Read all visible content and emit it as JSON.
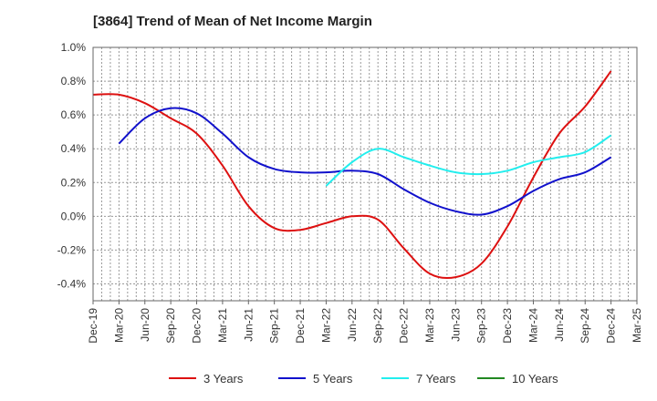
{
  "chart_data": {
    "type": "line",
    "title": "[3864]  Trend of Mean of Net Income Margin",
    "xlabel": "",
    "ylabel": "",
    "x": [
      "Dec-19",
      "Mar-20",
      "Jun-20",
      "Sep-20",
      "Dec-20",
      "Mar-21",
      "Jun-21",
      "Sep-21",
      "Dec-21",
      "Mar-22",
      "Jun-22",
      "Sep-22",
      "Dec-22",
      "Mar-23",
      "Jun-23",
      "Sep-23",
      "Dec-23",
      "Mar-24",
      "Jun-24",
      "Sep-24",
      "Dec-24",
      "Mar-25"
    ],
    "ylim": [
      -0.5,
      1.0
    ],
    "yticks": [
      1.0,
      0.8,
      0.6,
      0.4,
      0.2,
      0.0,
      -0.2,
      -0.4
    ],
    "ytick_labels": [
      "1.0%",
      "0.8%",
      "0.6%",
      "0.4%",
      "0.2%",
      "0.0%",
      "-0.2%",
      "-0.4%"
    ],
    "grid": true,
    "legend_position": "bottom",
    "series": [
      {
        "name": "3 Years",
        "color": "#dd1111",
        "values": [
          0.72,
          0.72,
          0.67,
          0.58,
          0.49,
          0.3,
          0.06,
          -0.07,
          -0.08,
          -0.04,
          0.0,
          -0.02,
          -0.19,
          -0.34,
          -0.36,
          -0.28,
          -0.06,
          0.23,
          0.49,
          0.65,
          0.86,
          null
        ]
      },
      {
        "name": "5 Years",
        "color": "#1111cc",
        "values": [
          null,
          0.43,
          0.58,
          0.64,
          0.61,
          0.49,
          0.35,
          0.28,
          0.26,
          0.26,
          0.27,
          0.25,
          0.16,
          0.08,
          0.03,
          0.01,
          0.06,
          0.15,
          0.22,
          0.26,
          0.35,
          null
        ]
      },
      {
        "name": "7 Years",
        "color": "#22eeee",
        "values": [
          null,
          null,
          null,
          null,
          null,
          null,
          null,
          null,
          null,
          0.18,
          0.32,
          0.4,
          0.35,
          0.3,
          0.26,
          0.25,
          0.27,
          0.32,
          0.35,
          0.38,
          0.48,
          null
        ]
      },
      {
        "name": "10 Years",
        "color": "#228822",
        "values": [
          null,
          null,
          null,
          null,
          null,
          null,
          null,
          null,
          null,
          null,
          null,
          null,
          null,
          null,
          null,
          null,
          null,
          null,
          null,
          null,
          null,
          null
        ]
      }
    ]
  }
}
